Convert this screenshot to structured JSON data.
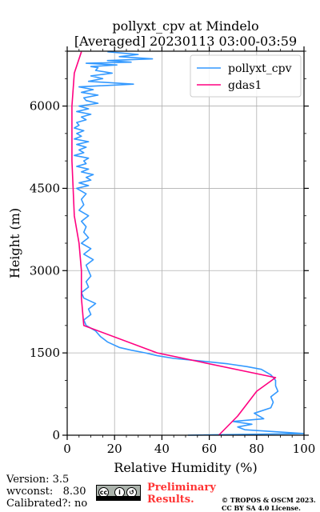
{
  "chart_data": {
    "type": "line",
    "title": "pollyxt_cpv at Mindelo",
    "subtitle": "[Averaged] 20230113 03:00-03:59",
    "xlabel": "Relative Humidity (%)",
    "ylabel": "Height (m)",
    "xlim": [
      0,
      100
    ],
    "ylim": [
      0,
      7000
    ],
    "xticks": [
      0,
      20,
      40,
      60,
      80,
      100
    ],
    "yticks": [
      0,
      1500,
      3000,
      4500,
      6000
    ],
    "grid": true,
    "legend_position": "top-right",
    "colors": {
      "pollyxt_cpv": "#3399ff",
      "gdas1": "#ff0080"
    },
    "series": [
      {
        "name": "pollyxt_cpv",
        "x": [
          51,
          100,
          75,
          72,
          78,
          70,
          83,
          79,
          86,
          87,
          86,
          89,
          88,
          88,
          86,
          82,
          76,
          68,
          57,
          45,
          38,
          33,
          27,
          22,
          17,
          14,
          12,
          8,
          7,
          10,
          9,
          12,
          7,
          6,
          9,
          8,
          10,
          9,
          8,
          11,
          7,
          10,
          6,
          9,
          7,
          8,
          6,
          9,
          5,
          7,
          6,
          8,
          4,
          9,
          5,
          10,
          8,
          11,
          6,
          9,
          4,
          8,
          7,
          9,
          3,
          7,
          5,
          8,
          4,
          9,
          3,
          6,
          4,
          7,
          3,
          5,
          4,
          8,
          6,
          10,
          4,
          9,
          5,
          13,
          8,
          7,
          13,
          6,
          11,
          5,
          28,
          9,
          15,
          10,
          19,
          12,
          13,
          10,
          21,
          8,
          27,
          17,
          36,
          22,
          30,
          17
        ],
        "y": [
          0,
          30,
          100,
          150,
          200,
          250,
          300,
          400,
          500,
          600,
          700,
          800,
          900,
          1000,
          1100,
          1200,
          1250,
          1300,
          1350,
          1400,
          1450,
          1500,
          1550,
          1600,
          1700,
          1800,
          1900,
          2000,
          2100,
          2200,
          2300,
          2400,
          2500,
          2600,
          2700,
          2800,
          2900,
          3000,
          3100,
          3200,
          3300,
          3400,
          3500,
          3600,
          3700,
          3800,
          3900,
          4000,
          4100,
          4200,
          4300,
          4400,
          4500,
          4550,
          4600,
          4650,
          4700,
          4750,
          4800,
          4850,
          4900,
          4950,
          5000,
          5050,
          5100,
          5150,
          5200,
          5250,
          5300,
          5350,
          5400,
          5450,
          5500,
          5550,
          5600,
          5650,
          5700,
          5750,
          5800,
          5850,
          5900,
          5950,
          6000,
          6050,
          6100,
          6150,
          6200,
          6250,
          6300,
          6350,
          6400,
          6450,
          6500,
          6550,
          6600,
          6650,
          6700,
          6720,
          6750,
          6780,
          6800,
          6830,
          6860,
          6900,
          6940,
          6990
        ]
      },
      {
        "name": "gdas1",
        "x": [
          64,
          72,
          80,
          88,
          38,
          7,
          6,
          6,
          5,
          3,
          2,
          2,
          3,
          6
        ],
        "y": [
          0,
          350,
          800,
          1050,
          1500,
          2000,
          2500,
          3000,
          3500,
          4000,
          5000,
          6000,
          6600,
          6990
        ]
      }
    ]
  },
  "footer": {
    "version": "Version: 3.5",
    "wvconst": "wvconst:   8.30",
    "calibrated": "Calibrated?: no",
    "preliminary_line1": "Preliminary",
    "preliminary_line2": "Results.",
    "copyright_line1": "© TROPOS & OSCM 2023.",
    "copyright_line2": "CC BY SA 4.0 License."
  }
}
